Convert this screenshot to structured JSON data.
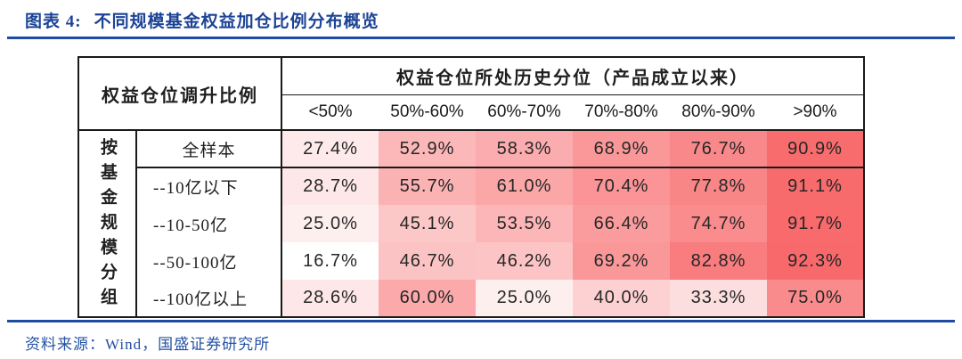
{
  "figure": {
    "title_prefix": "图表 4:",
    "title_text": "不同规模基金权益加仓比例分布概览",
    "source": "资料来源：Wind，国盛证券研究所"
  },
  "colors": {
    "accent_blue": "#1e4ca1",
    "title_blue": "#1c4396",
    "source_blue": "#2452a5",
    "table_border": "#1a1a1a"
  },
  "chart_data": {
    "type": "heatmap",
    "title": "不同规模基金权益加仓比例分布概览",
    "corner_header": "权益仓位调升比例",
    "column_group_header": "权益仓位所处历史分位（产品成立以来）",
    "row_group_header": "按基金规模分组",
    "columns": [
      "<50%",
      "50%-60%",
      "60%-70%",
      "70%-80%",
      "80%-90%",
      ">90%"
    ],
    "rows": [
      {
        "label": "全样本",
        "values": [
          27.4,
          52.9,
          58.3,
          68.9,
          76.7,
          90.9
        ]
      },
      {
        "label": "--10亿以下",
        "values": [
          28.7,
          55.7,
          61.0,
          70.4,
          77.8,
          91.1
        ]
      },
      {
        "label": "--10-50亿",
        "values": [
          25.0,
          45.1,
          53.5,
          66.4,
          74.7,
          91.7
        ]
      },
      {
        "label": "--50-100亿",
        "values": [
          16.7,
          46.7,
          46.2,
          69.2,
          82.8,
          92.3
        ]
      },
      {
        "label": "--100亿以上",
        "values": [
          28.6,
          60.0,
          25.0,
          40.0,
          33.3,
          75.0
        ]
      }
    ],
    "unit": "%",
    "heatmap_scale": {
      "min_value": 16.7,
      "max_value": 92.3,
      "min_color": "#FFFFFF",
      "max_color": "#F8696B"
    }
  }
}
